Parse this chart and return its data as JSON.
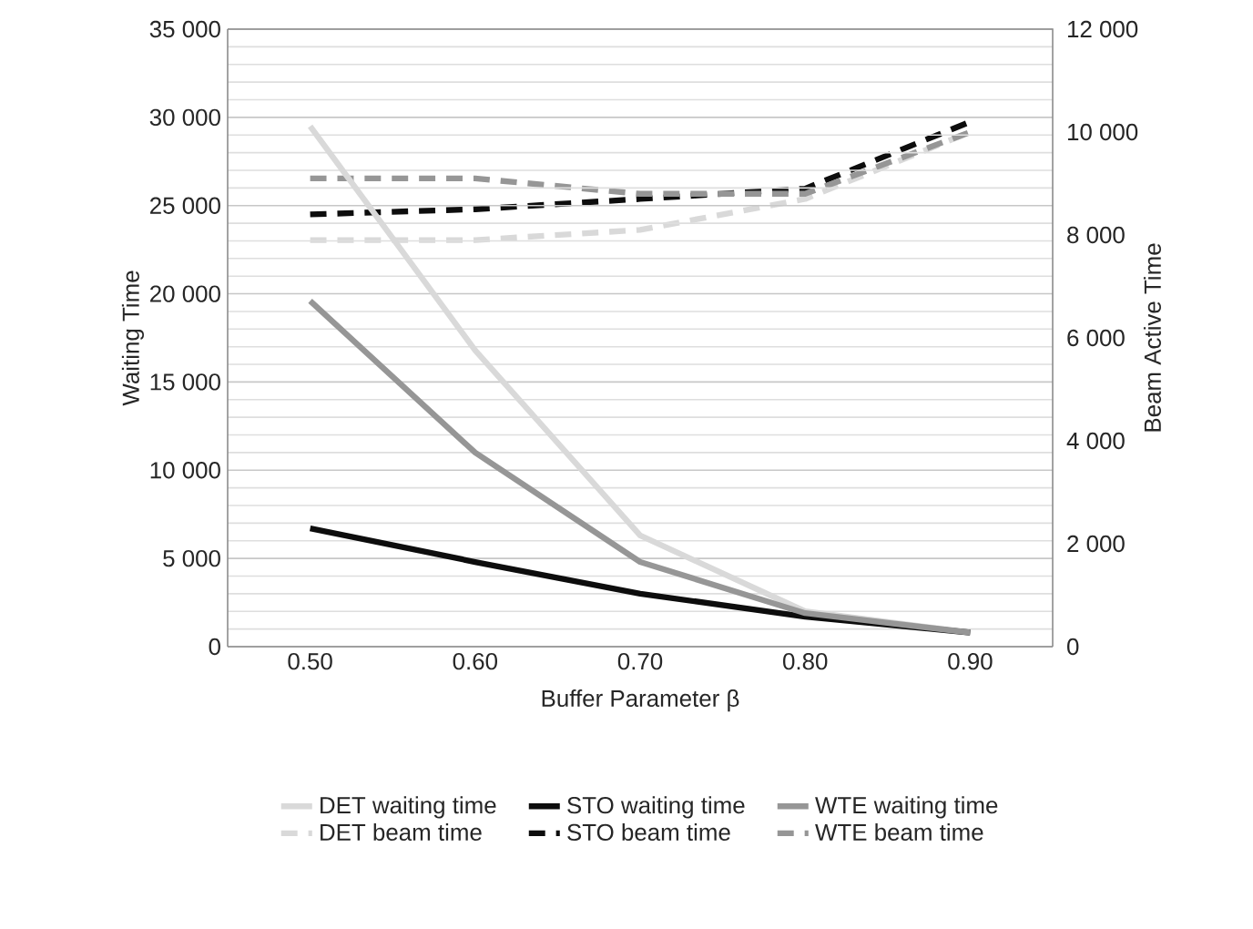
{
  "chart_data": {
    "type": "line",
    "xlabel": "Buffer Parameter β",
    "ylabel": "Waiting Time",
    "y2label": "Beam Active Time",
    "categories": [
      "0.50",
      "0.60",
      "0.70",
      "0.80",
      "0.90"
    ],
    "series": [
      {
        "name": "DET waiting time",
        "color": "#d9d9d9",
        "values": [
          29500,
          16800,
          6300,
          2000,
          800
        ]
      },
      {
        "name": "STO waiting time",
        "color": "#0d0d0d",
        "values": [
          6700,
          4800,
          3000,
          1700,
          800
        ]
      },
      {
        "name": "WTE waiting time",
        "color": "#969696",
        "values": [
          19600,
          11000,
          4800,
          1900,
          800
        ]
      },
      {
        "name": "DET beam time",
        "color": "#d9d9d9",
        "axis": "y2",
        "line_style": "dashed",
        "values": [
          7900,
          7900,
          8100,
          8700,
          10000
        ]
      },
      {
        "name": "STO beam time",
        "color": "#0d0d0d",
        "axis": "y2",
        "line_style": "dashed",
        "values": [
          8400,
          8500,
          8700,
          8900,
          10200
        ]
      },
      {
        "name": "WTE beam time",
        "color": "#969696",
        "axis": "y2",
        "line_style": "dashed",
        "values": [
          9100,
          9100,
          8800,
          8800,
          10000
        ]
      }
    ],
    "ylim": [
      0,
      35000
    ],
    "yticks": [
      0,
      {
        "value": 5000,
        "label": "5 000"
      },
      {
        "value": 10000,
        "label": "10 000"
      },
      {
        "value": 15000,
        "label": "15 000"
      },
      {
        "value": 20000,
        "label": "20 000"
      },
      {
        "value": 25000,
        "label": "25 000"
      },
      {
        "value": 30000,
        "label": "30 000"
      },
      {
        "value": 35000,
        "label": "35 000"
      }
    ],
    "y2lim": [
      0,
      12000
    ],
    "y2ticks": [
      0,
      {
        "value": 2000,
        "label": "2 000"
      },
      {
        "value": 4000,
        "label": "4 000"
      },
      {
        "value": 6000,
        "label": "6 000"
      },
      {
        "value": 8000,
        "label": "8 000"
      },
      {
        "value": 10000,
        "label": "10 000"
      },
      {
        "value": 12000,
        "label": "12 000"
      }
    ],
    "grid": "y",
    "legend": "bottom",
    "marker": "none",
    "line_style": "solid"
  }
}
